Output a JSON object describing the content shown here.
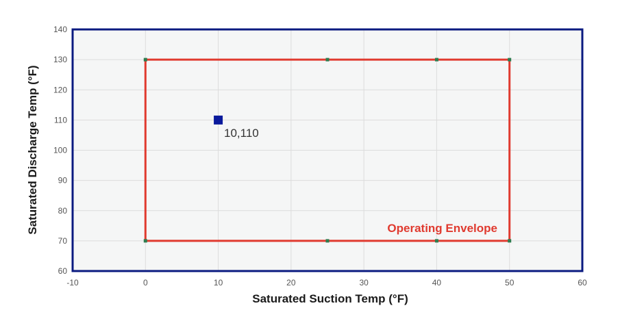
{
  "chart_data": {
    "type": "scatter",
    "title": "",
    "xlabel": "Saturated Suction Temp (°F)",
    "ylabel": "Saturated Discharge Temp (°F)",
    "xlim": [
      -10,
      60
    ],
    "ylim": [
      60,
      140
    ],
    "xticks": [
      -10,
      0,
      10,
      20,
      30,
      40,
      50,
      60
    ],
    "yticks": [
      60,
      70,
      80,
      90,
      100,
      110,
      120,
      130,
      140
    ],
    "grid": true,
    "envelope": {
      "name": "Operating Envelope",
      "color": "#e03a2f",
      "vertex_color": "#2e7d4f",
      "points": [
        {
          "x": 0,
          "y": 130
        },
        {
          "x": 25,
          "y": 130
        },
        {
          "x": 40,
          "y": 130
        },
        {
          "x": 50,
          "y": 130
        },
        {
          "x": 50,
          "y": 70
        },
        {
          "x": 40,
          "y": 70
        },
        {
          "x": 25,
          "y": 70
        },
        {
          "x": 0,
          "y": 70
        }
      ]
    },
    "operating_point": {
      "x": 10,
      "y": 110,
      "label": "10,110",
      "color": "#0a1a9c"
    },
    "colors": {
      "plot_background": "#f5f6f6",
      "plot_border": "#0a1a80",
      "grid": "#dcdcdc"
    }
  }
}
